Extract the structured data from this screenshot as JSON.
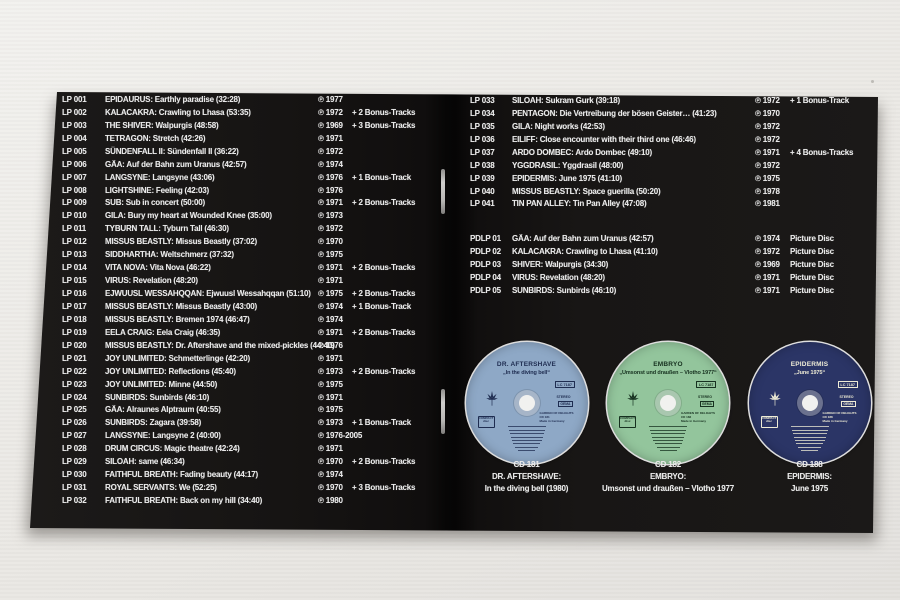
{
  "photo": {
    "background": "#eae8e4",
    "page_color": "#161413"
  },
  "left_page": {
    "entries": [
      {
        "cat": "LP 001",
        "title": "EPIDAURUS: Earthly paradise (32:28)",
        "year": "℗ 1977",
        "extra": ""
      },
      {
        "cat": "LP 002",
        "title": "KALACAKRA: Crawling to Lhasa (53:35)",
        "year": "℗ 1972",
        "extra": "+ 2 Bonus-Tracks"
      },
      {
        "cat": "LP 003",
        "title": "THE SHIVER: Walpurgis (48:58)",
        "year": "℗ 1969",
        "extra": "+ 3 Bonus-Tracks"
      },
      {
        "cat": "LP 004",
        "title": "TETRAGON: Stretch (42:26)",
        "year": "℗ 1971",
        "extra": ""
      },
      {
        "cat": "LP 005",
        "title": "SÜNDENFALL II: Sündenfall II (36:22)",
        "year": "℗ 1972",
        "extra": ""
      },
      {
        "cat": "LP 006",
        "title": "GÄA: Auf der Bahn zum Uranus (42:57)",
        "year": "℗ 1974",
        "extra": ""
      },
      {
        "cat": "LP 007",
        "title": "LANGSYNE: Langsyne (43:06)",
        "year": "℗ 1976",
        "extra": "+ 1 Bonus-Track"
      },
      {
        "cat": "LP 008",
        "title": "LIGHTSHINE: Feeling (42:03)",
        "year": "℗ 1976",
        "extra": ""
      },
      {
        "cat": "LP 009",
        "title": "SUB: Sub in concert (50:00)",
        "year": "℗ 1971",
        "extra": "+ 2 Bonus-Tracks"
      },
      {
        "cat": "LP 010",
        "title": "GILA: Bury my heart at Wounded Knee (35:00)",
        "year": "℗ 1973",
        "extra": ""
      },
      {
        "cat": "LP 011",
        "title": "TYBURN TALL: Tyburn Tall (46:30)",
        "year": "℗ 1972",
        "extra": ""
      },
      {
        "cat": "LP 012",
        "title": "MISSUS BEASTLY: Missus Beastly (37:02)",
        "year": "℗ 1970",
        "extra": ""
      },
      {
        "cat": "LP 013",
        "title": "SIDDHARTHA: Weltschmerz (37:32)",
        "year": "℗ 1975",
        "extra": ""
      },
      {
        "cat": "LP 014",
        "title": "VITA NOVA: Vita Nova (46:22)",
        "year": "℗ 1971",
        "extra": "+ 2 Bonus-Tracks"
      },
      {
        "cat": "LP 015",
        "title": "VIRUS: Revelation (48:20)",
        "year": "℗ 1971",
        "extra": ""
      },
      {
        "cat": "LP 016",
        "title": "EJWUUSL WESSAHQQAN: Ejwuusl Wessahqqan (51:10)",
        "year": "℗ 1975",
        "extra": "+ 2 Bonus-Tracks"
      },
      {
        "cat": "LP 017",
        "title": "MISSUS BEASTLY: Missus Beastly (43:00)",
        "year": "℗ 1974",
        "extra": "+ 1 Bonus-Track"
      },
      {
        "cat": "LP 018",
        "title": "MISSUS BEASTLY: Bremen 1974 (46:47)",
        "year": "℗ 1974",
        "extra": ""
      },
      {
        "cat": "LP 019",
        "title": "EELA CRAIG: Eela Craig (46:35)",
        "year": "℗ 1971",
        "extra": "+ 2 Bonus-Tracks"
      },
      {
        "cat": "LP 020",
        "title": "MISSUS BEASTLY: Dr. Aftershave and the mixed-pickles (44:40)",
        "year": "℗ 1976",
        "extra": ""
      },
      {
        "cat": "LP 021",
        "title": "JOY UNLIMITED: Schmetterlinge (42:20)",
        "year": "℗ 1971",
        "extra": ""
      },
      {
        "cat": "LP 022",
        "title": "JOY UNLIMITED: Reflections (45:40)",
        "year": "℗ 1973",
        "extra": "+ 2 Bonus-Tracks"
      },
      {
        "cat": "LP 023",
        "title": "JOY UNLIMITED: Minne (44:50)",
        "year": "℗ 1975",
        "extra": ""
      },
      {
        "cat": "LP 024",
        "title": "SUNBIRDS: Sunbirds (46:10)",
        "year": "℗ 1971",
        "extra": ""
      },
      {
        "cat": "LP 025",
        "title": "GÄA: Alraunes Alptraum (40:55)",
        "year": "℗ 1975",
        "extra": ""
      },
      {
        "cat": "LP 026",
        "title": "SUNBIRDS: Zagara (39:58)",
        "year": "℗ 1973",
        "extra": "+ 1 Bonus-Track"
      },
      {
        "cat": "LP 027",
        "title": "LANGSYNE: Langsyne 2 (40:00)",
        "year": "℗ 1976-2005",
        "extra": ""
      },
      {
        "cat": "LP 028",
        "title": "DRUM CIRCUS: Magic theatre (42:24)",
        "year": "℗ 1971",
        "extra": ""
      },
      {
        "cat": "LP 029",
        "title": "SILOAH: same (46:34)",
        "year": "℗ 1970",
        "extra": "+ 2 Bonus-Tracks"
      },
      {
        "cat": "LP 030",
        "title": "FAITHFUL BREATH: Fading beauty (44:17)",
        "year": "℗ 1974",
        "extra": ""
      },
      {
        "cat": "LP 031",
        "title": "ROYAL SERVANTS: We (52:25)",
        "year": "℗ 1970",
        "extra": "+ 3 Bonus-Tracks"
      },
      {
        "cat": "LP 032",
        "title": "FAITHFUL BREATH: Back on my hill (34:40)",
        "year": "℗ 1980",
        "extra": ""
      }
    ]
  },
  "right_page": {
    "lp_entries": [
      {
        "cat": "LP 033",
        "title": "SILOAH: Sukram Gurk (39:18)",
        "year": "℗ 1972",
        "extra": "+ 1 Bonus-Track"
      },
      {
        "cat": "LP 034",
        "title": "PENTAGON: Die Vertreibung der bösen Geister… (41:23)",
        "year": "℗ 1970",
        "extra": ""
      },
      {
        "cat": "LP 035",
        "title": "GILA: Night works (42:53)",
        "year": "℗ 1972",
        "extra": ""
      },
      {
        "cat": "LP 036",
        "title": "EILIFF: Close encounter with their third one (46:46)",
        "year": "℗ 1972",
        "extra": ""
      },
      {
        "cat": "LP 037",
        "title": "ARDO DOMBEC: Ardo Dombec (49:10)",
        "year": "℗ 1971",
        "extra": "+ 4 Bonus-Tracks"
      },
      {
        "cat": "LP 038",
        "title": "YGGDRASIL: Yggdrasil (48:00)",
        "year": "℗ 1972",
        "extra": ""
      },
      {
        "cat": "LP 039",
        "title": "EPIDERMIS: June 1975 (41:10)",
        "year": "℗ 1975",
        "extra": ""
      },
      {
        "cat": "LP 040",
        "title": "MISSUS BEASTLY: Space guerilla (50:20)",
        "year": "℗ 1978",
        "extra": ""
      },
      {
        "cat": "LP 041",
        "title": "TIN PAN ALLEY: Tin Pan Alley (47:08)",
        "year": "℗ 1981",
        "extra": ""
      }
    ],
    "pdlp_entries": [
      {
        "cat": "PDLP 01",
        "title": "GÄA: Auf der Bahn zum Uranus (42:57)",
        "year": "℗ 1974",
        "extra": "Picture Disc"
      },
      {
        "cat": "PDLP 02",
        "title": "KALACAKRA: Crawling to Lhasa (41:10)",
        "year": "℗ 1972",
        "extra": "Picture Disc"
      },
      {
        "cat": "PDLP 03",
        "title": "SHIVER: Walpurgis (34:30)",
        "year": "℗ 1969",
        "extra": "Picture Disc"
      },
      {
        "cat": "PDLP 04",
        "title": "VIRUS: Revelation (48:20)",
        "year": "℗ 1971",
        "extra": "Picture Disc"
      },
      {
        "cat": "PDLP 05",
        "title": "SUNBIRDS: Sunbirds (46:10)",
        "year": "℗ 1971",
        "extra": "Picture Disc"
      }
    ],
    "cd_section": {
      "cds": [
        {
          "caption_id": "CD 181",
          "caption_artist": "DR. AFTERSHAVE:",
          "caption_album": "In the diving bell (1980)",
          "label_artist": "DR. AFTERSHAVE",
          "label_title": "„In the diving bell“",
          "lc_code": "LC 7187",
          "stereo": "STEREO",
          "gema": "GEMA",
          "line1": "GARDEN OF DELIGHTS",
          "line2": "CD 181",
          "line3": "Made in Germany",
          "cd_logo": "COMPACT disc",
          "disc_color": "#8ea8c6",
          "text_color": "#1e2c50"
        },
        {
          "caption_id": "CD 182",
          "caption_artist": "EMBRYO:",
          "caption_album": "Umsonst und draußen – Vlotho 1977",
          "label_artist": "EMBRYO",
          "label_title": "„Umsonst und draußen – Vlotho 1977“",
          "lc_code": "LC 7187",
          "stereo": "STEREO",
          "gema": "GEMA",
          "line1": "GARDEN OF DELIGHTS",
          "line2": "CD 182",
          "line3": "Made in Germany",
          "cd_logo": "COMPACT disc",
          "disc_color": "#93c59c",
          "text_color": "#16301f"
        },
        {
          "caption_id": "CD 188",
          "caption_artist": "EPIDERMIS:",
          "caption_album": "June 1975",
          "label_artist": "EPIDERMIS",
          "label_title": "„June 1975“",
          "lc_code": "LC 7187",
          "stereo": "STEREO",
          "gema": "GEMA",
          "line1": "GARDEN OF DELIGHTS",
          "line2": "CD 188",
          "line3": "Made in Germany",
          "cd_logo": "COMPACT disc",
          "disc_color": "#2b3566",
          "text_color": "#efecd6"
        }
      ]
    }
  }
}
